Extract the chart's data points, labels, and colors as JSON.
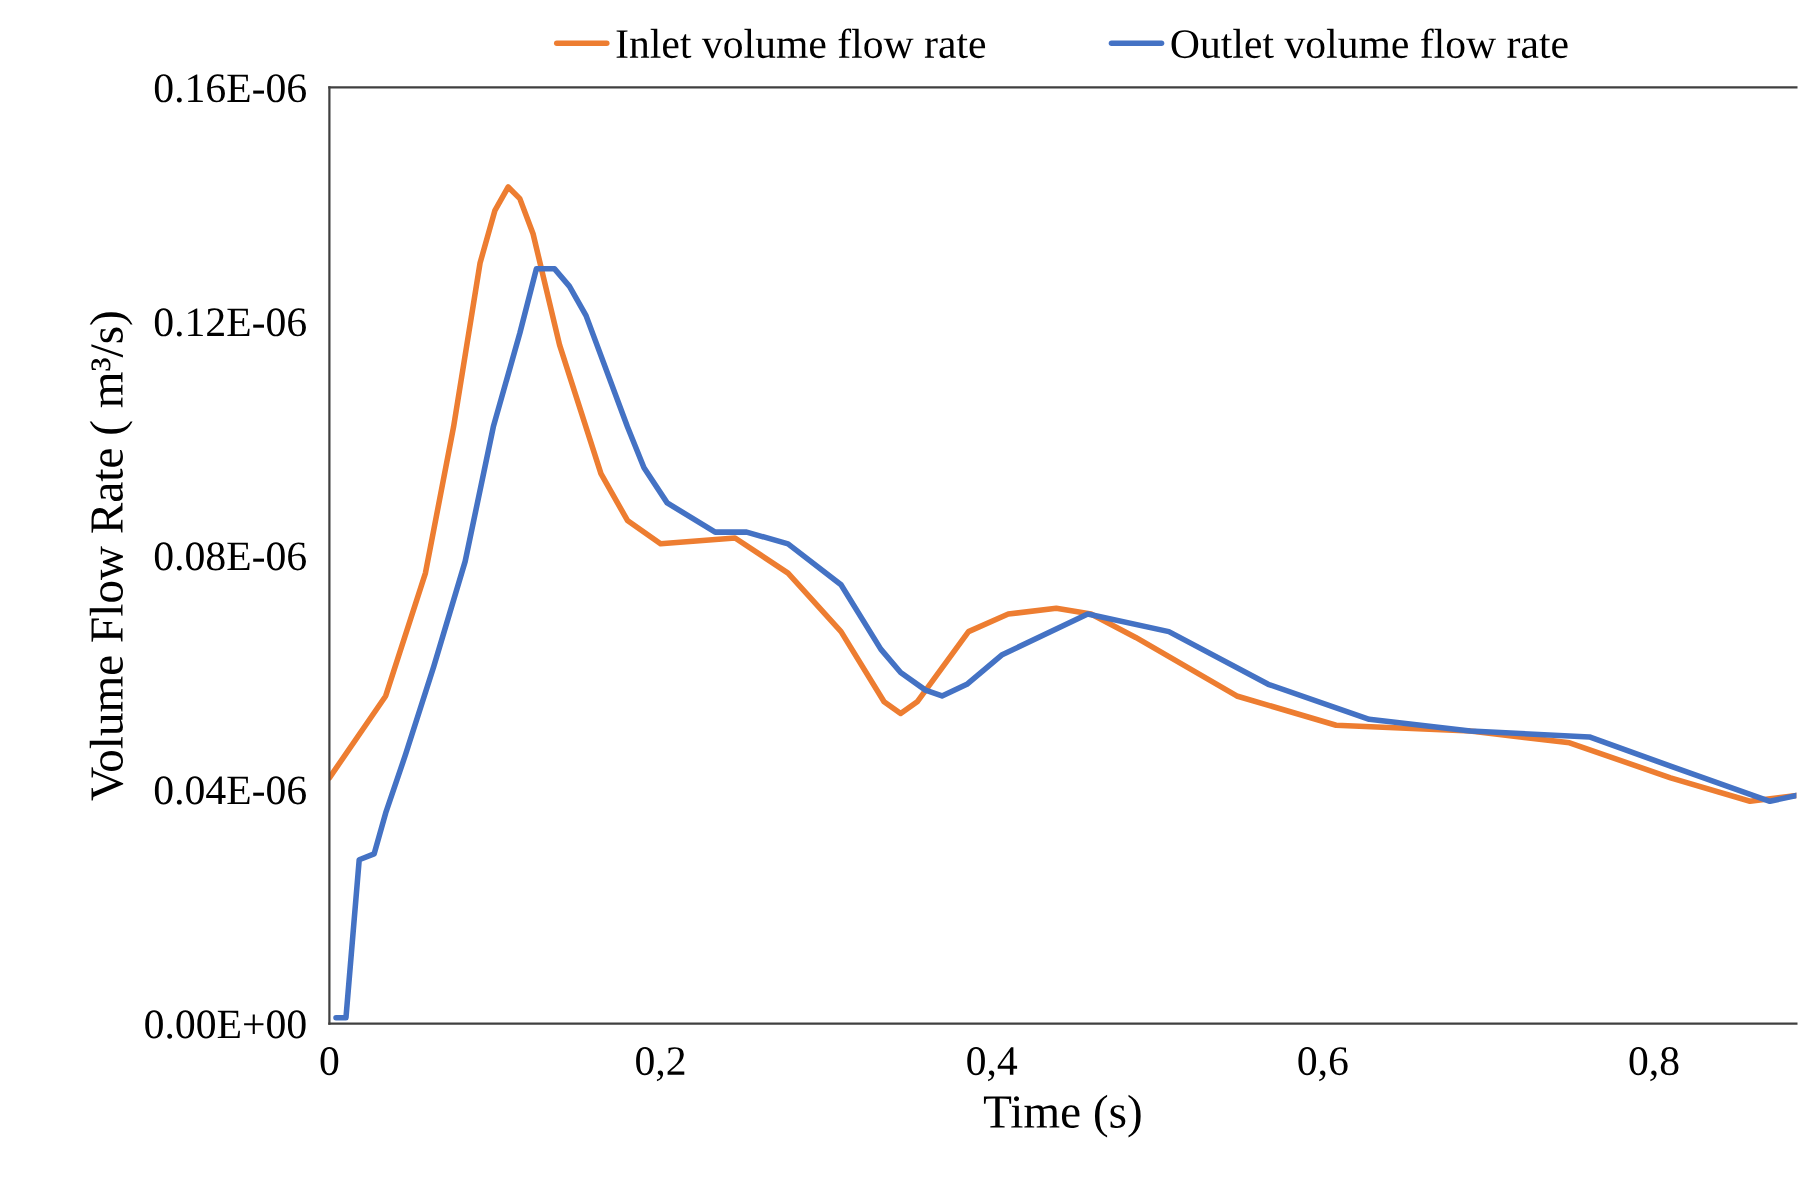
{
  "chart_data": {
    "type": "line",
    "xlabel": "Time (s)",
    "ylabel": "Volume Flow Rate ( m³/s)",
    "xlim": [
      0,
      0.886
    ],
    "xticks": [
      0,
      {
        "value": 0.2,
        "label": "0,2"
      },
      {
        "value": 0.4,
        "label": "0,4"
      },
      {
        "value": 0.6,
        "label": "0,6"
      },
      {
        "value": 0.8,
        "label": "0,8"
      }
    ],
    "ylim": [
      0,
      1.6e-07
    ],
    "yticks": [
      {
        "value": 0,
        "label": "0.00E+00"
      },
      {
        "value": 4e-08,
        "label": "0.04E-06"
      },
      {
        "value": 8e-08,
        "label": "0.08E-06"
      },
      {
        "value": 1.2e-07,
        "label": "0.12E-06"
      },
      {
        "value": 1.6e-07,
        "label": "0.16E-06"
      }
    ],
    "grid": false,
    "legend": "top",
    "marker": "none",
    "line_style": "solid",
    "series": [
      {
        "name": "Inlet volume flow rate",
        "color": "#ed7d31",
        "x": [
          0,
          0.034,
          0.058,
          0.075,
          0.091,
          0.1,
          0.108,
          0.115,
          0.123,
          0.139,
          0.164,
          0.18,
          0.2,
          0.245,
          0.277,
          0.309,
          0.335,
          0.345,
          0.355,
          0.386,
          0.41,
          0.439,
          0.46,
          0.487,
          0.548,
          0.608,
          0.689,
          0.749,
          0.81,
          0.858,
          0.886
        ],
        "values": [
          4.2e-08,
          5.6e-08,
          7.7e-08,
          1.02e-07,
          1.3e-07,
          1.39e-07,
          1.43e-07,
          1.41e-07,
          1.35e-07,
          1.16e-07,
          9.4e-08,
          8.6e-08,
          8.2e-08,
          8.3e-08,
          7.7e-08,
          6.7e-08,
          5.5e-08,
          5.3e-08,
          5.5e-08,
          6.7e-08,
          7e-08,
          7.1e-08,
          7e-08,
          6.6e-08,
          5.6e-08,
          5.1e-08,
          5e-08,
          4.8e-08,
          4.2e-08,
          3.8e-08,
          3.9e-08
        ]
      },
      {
        "name": "Outlet volume flow rate",
        "color": "#4472c4",
        "x": [
          0.004,
          0.01,
          0.018,
          0.027,
          0.034,
          0.046,
          0.063,
          0.082,
          0.099,
          0.115,
          0.125,
          0.136,
          0.145,
          0.155,
          0.18,
          0.19,
          0.204,
          0.233,
          0.252,
          0.277,
          0.309,
          0.333,
          0.345,
          0.36,
          0.37,
          0.385,
          0.406,
          0.458,
          0.507,
          0.567,
          0.628,
          0.689,
          0.761,
          0.81,
          0.87,
          0.886
        ],
        "values": [
          1e-09,
          1e-09,
          2.8e-08,
          2.9e-08,
          3.6e-08,
          4.6e-08,
          6.1e-08,
          7.9e-08,
          1.02e-07,
          1.18e-07,
          1.29e-07,
          1.29e-07,
          1.26e-07,
          1.21e-07,
          1.02e-07,
          9.5e-08,
          8.9e-08,
          8.4e-08,
          8.4e-08,
          8.2e-08,
          7.5e-08,
          6.4e-08,
          6e-08,
          5.7e-08,
          5.6e-08,
          5.8e-08,
          6.3e-08,
          7e-08,
          6.7e-08,
          5.8e-08,
          5.2e-08,
          5e-08,
          4.9e-08,
          4.4e-08,
          3.8e-08,
          3.9e-08
        ]
      }
    ]
  }
}
